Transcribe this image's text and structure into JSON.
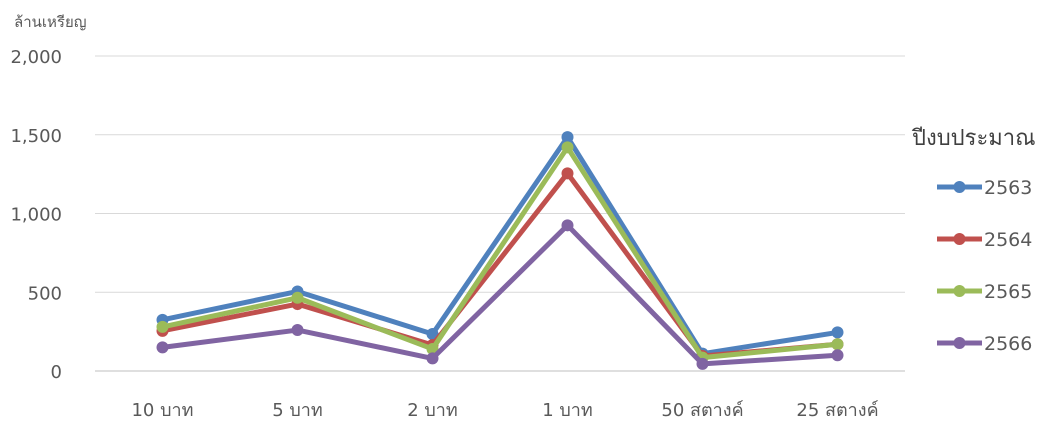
{
  "chart_data": {
    "type": "line",
    "ylabel": "ล้านเหรียญ",
    "ylim": [
      0,
      2000
    ],
    "yticks": [
      0,
      500,
      1000,
      1500,
      2000
    ],
    "ytick_labels": [
      "0",
      "500",
      "1,000",
      "1,500",
      "2,000"
    ],
    "grid": true,
    "categories": [
      "10 บาท",
      "5 บาท",
      "2 บาท",
      "1 บาท",
      "50 สตางค์",
      "25 สตางค์"
    ],
    "legend": {
      "title": "ปีงบประมาณ",
      "position": "right"
    },
    "series": [
      {
        "name": "2563",
        "color": "#4f81bd",
        "values": [
          325,
          505,
          235,
          1485,
          110,
          245
        ]
      },
      {
        "name": "2564",
        "color": "#c0504d",
        "values": [
          255,
          425,
          165,
          1255,
          95,
          170
        ]
      },
      {
        "name": "2565",
        "color": "#9bbb59",
        "values": [
          280,
          465,
          140,
          1420,
          85,
          170
        ]
      },
      {
        "name": "2566",
        "color": "#8064a2",
        "values": [
          150,
          260,
          80,
          925,
          45,
          100
        ]
      }
    ]
  }
}
